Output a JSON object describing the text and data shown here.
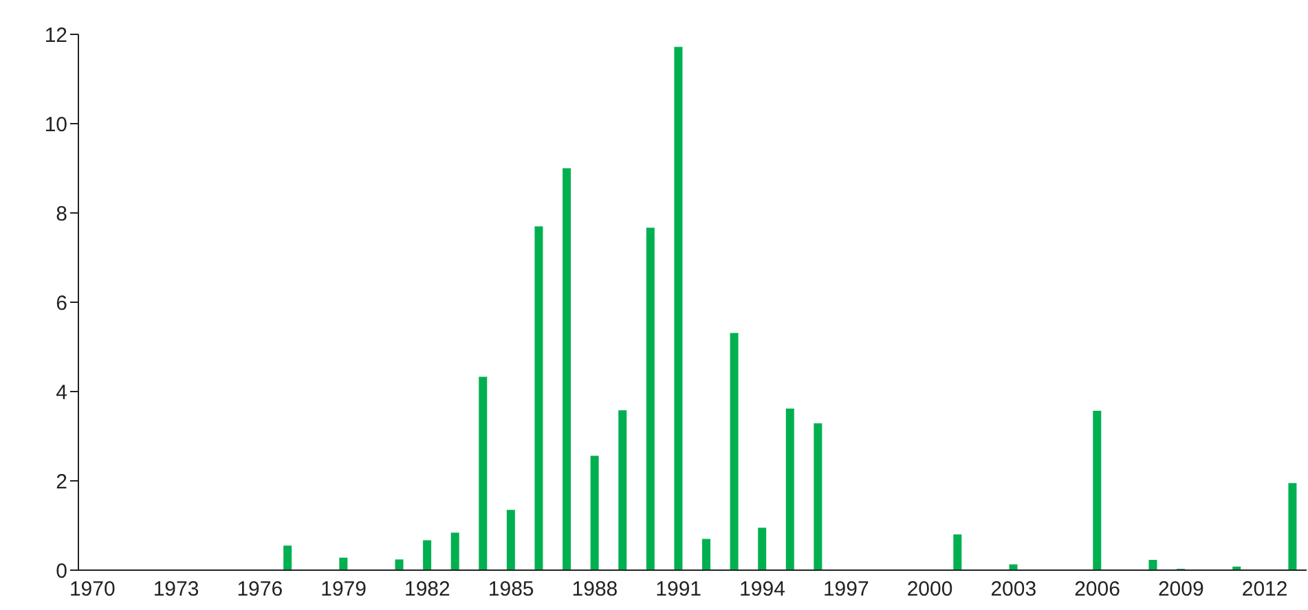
{
  "chart_data": {
    "type": "bar",
    "categories": [
      "1970",
      null,
      null,
      "1973",
      null,
      null,
      "1976",
      null,
      null,
      "1979",
      null,
      null,
      "1982",
      null,
      null,
      "1985",
      null,
      null,
      "1988",
      null,
      null,
      "1991",
      null,
      null,
      "1994",
      null,
      null,
      "1997",
      null,
      null,
      "2000",
      null,
      null,
      "2003",
      null,
      null,
      "2006",
      null,
      null,
      "2009",
      null,
      null,
      "2012",
      null
    ],
    "values": [
      0,
      0,
      0,
      0,
      0,
      0,
      0,
      0.55,
      0,
      0.28,
      0,
      0.24,
      0.67,
      0.84,
      4.33,
      1.35,
      7.7,
      9.0,
      2.56,
      3.58,
      7.67,
      11.72,
      0.7,
      5.31,
      0.95,
      3.62,
      3.29,
      0,
      0,
      0,
      0,
      0.8,
      0,
      0.13,
      0,
      0,
      3.57,
      0,
      0.23,
      0.03,
      0,
      0.08,
      0,
      1.95
    ],
    "color": "#00b050",
    "ylim": [
      0,
      12
    ],
    "yticks": [
      0,
      2,
      4,
      6,
      8,
      10,
      12
    ],
    "grid": false
  }
}
